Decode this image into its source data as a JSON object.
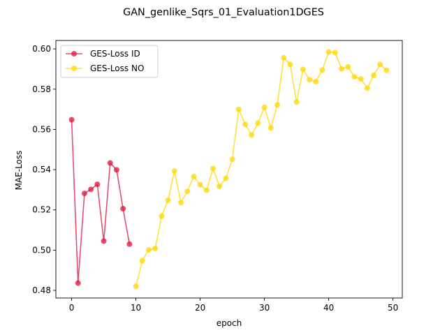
{
  "chart_data": {
    "type": "line",
    "title": "GAN_genlike_Sqrs_01_Evaluation1DGES",
    "xlabel": "epoch",
    "ylabel": "MAE-Loss",
    "xlim": [
      -2.45,
      51.45
    ],
    "ylim": [
      0.4762,
      0.6042
    ],
    "xticks": [
      0,
      10,
      20,
      30,
      40,
      50
    ],
    "yticks": [
      0.48,
      0.5,
      0.52,
      0.54,
      0.56,
      0.58,
      0.6
    ],
    "ytick_labels": [
      "0.48",
      "0.50",
      "0.52",
      "0.54",
      "0.56",
      "0.58",
      "0.60"
    ],
    "grid": false,
    "legend_position": "upper-left",
    "series": [
      {
        "name": "GES-Loss ID",
        "color": "#dc143c",
        "x": [
          0,
          1,
          2,
          3,
          4,
          5,
          6,
          7,
          8,
          9
        ],
        "y": [
          0.5648,
          0.4836,
          0.5282,
          0.5302,
          0.5327,
          0.5045,
          0.5433,
          0.5399,
          0.5206,
          0.503
        ]
      },
      {
        "name": "GES-Loss NO",
        "color": "#ffd700",
        "x": [
          10,
          11,
          12,
          13,
          14,
          15,
          16,
          17,
          18,
          19,
          20,
          21,
          22,
          23,
          24,
          25,
          26,
          27,
          28,
          29,
          30,
          31,
          32,
          33,
          34,
          35,
          36,
          37,
          38,
          39,
          40,
          41,
          42,
          43,
          44,
          45,
          46,
          47,
          48,
          49
        ],
        "y": [
          0.482,
          0.4948,
          0.5001,
          0.5008,
          0.5169,
          0.5248,
          0.5393,
          0.5236,
          0.5292,
          0.5366,
          0.5325,
          0.5298,
          0.5406,
          0.5317,
          0.5357,
          0.5451,
          0.57,
          0.5625,
          0.5572,
          0.5631,
          0.571,
          0.5607,
          0.5722,
          0.5956,
          0.5923,
          0.5736,
          0.5898,
          0.5847,
          0.5838,
          0.5895,
          0.5985,
          0.5982,
          0.5901,
          0.5911,
          0.5861,
          0.5851,
          0.5805,
          0.5869,
          0.5923,
          0.5894
        ]
      }
    ]
  }
}
